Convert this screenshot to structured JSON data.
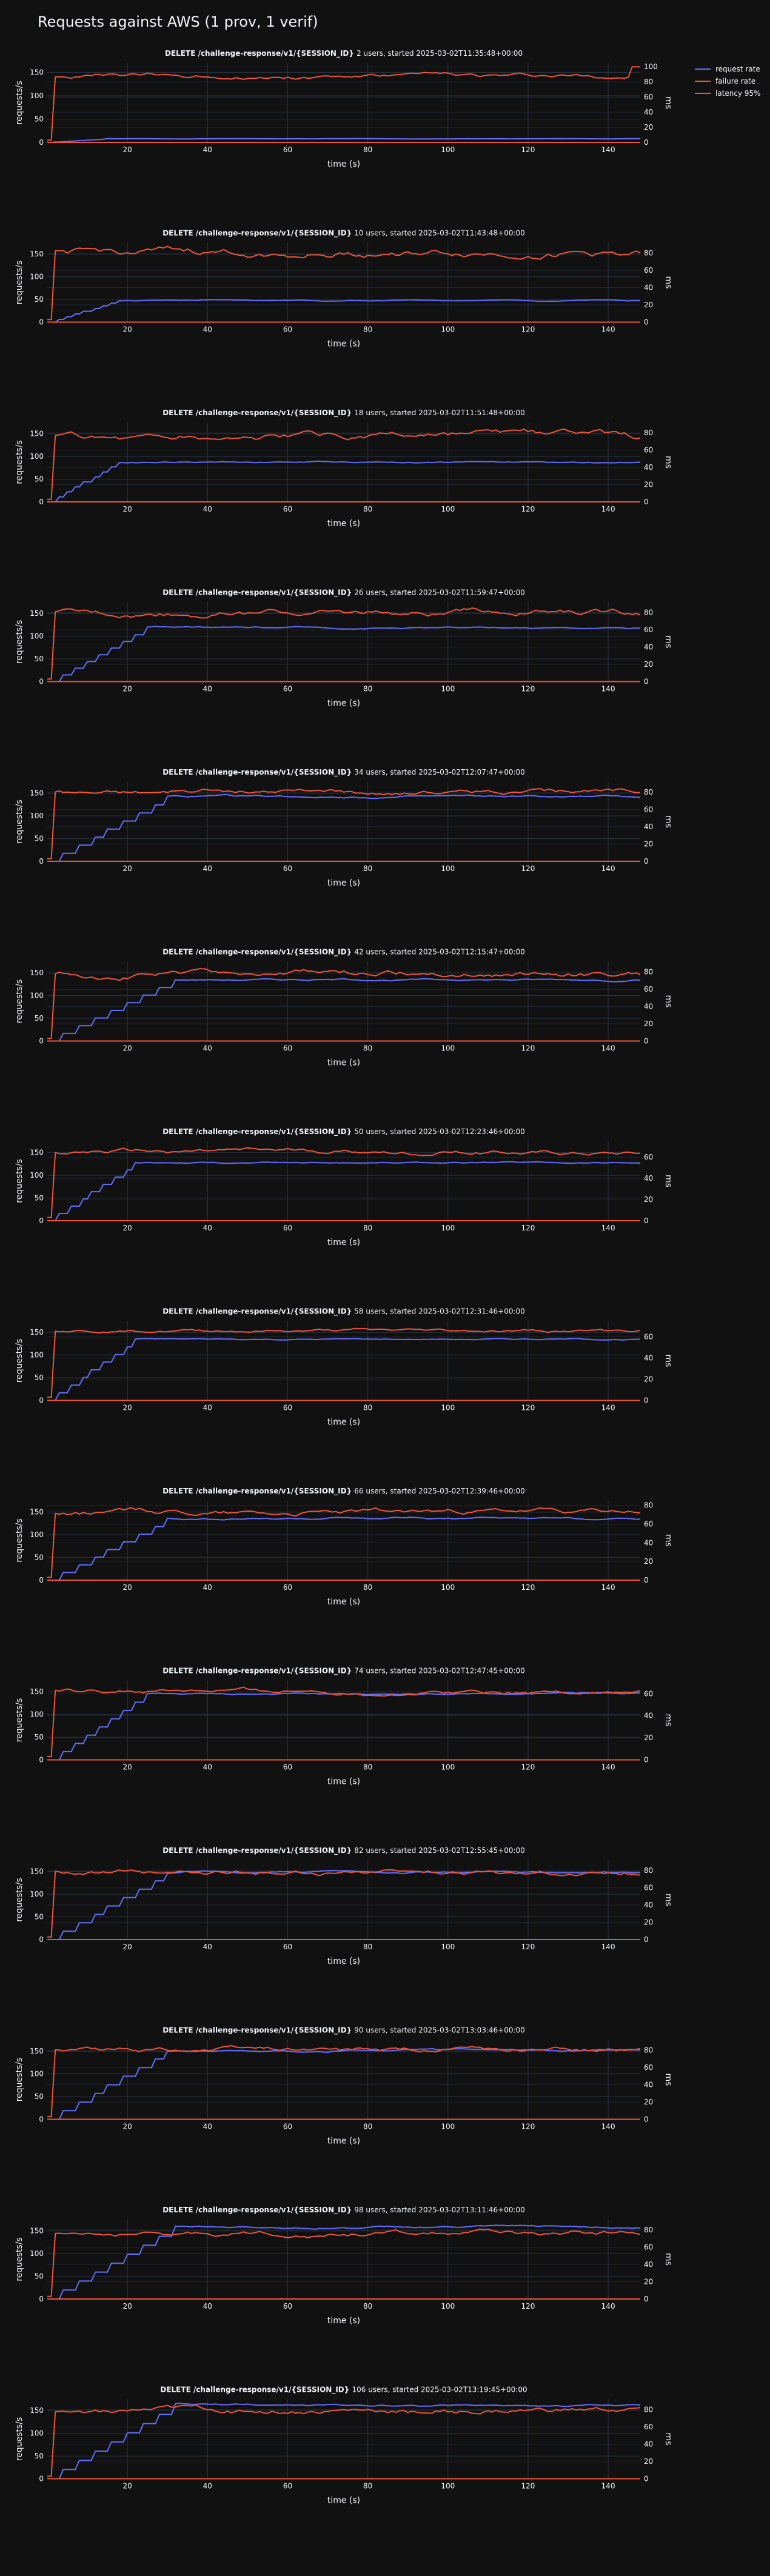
{
  "page": {
    "title": "Requests against AWS (1 prov, 1 verif)"
  },
  "colors": {
    "background": "#111111",
    "plot_background": "#111111",
    "grid": "#283442",
    "text": "#f2f5fa",
    "request_rate": "#636efa",
    "failure_rate": "#EF553B",
    "latency_95": "#EF553B"
  },
  "legend": {
    "items": [
      {
        "label": "request rate",
        "color": "#636efa"
      },
      {
        "label": "failure rate",
        "color": "#EF553B"
      },
      {
        "label": "latency 95%",
        "color": "#EF553B"
      }
    ]
  },
  "shared_axes": {
    "xlabel": "time (s)",
    "ylabel_left": "requests/s",
    "ylabel_right": "ms",
    "x_ticks": [
      20,
      40,
      60,
      80,
      100,
      120,
      140
    ],
    "x_range": [
      0,
      148
    ],
    "y_left_ticks": [
      0,
      50,
      100,
      150
    ]
  },
  "chart_data": [
    {
      "type": "line",
      "route": "DELETE /challenge-response/v1/{SESSION_ID}",
      "subtitle": "2 users, started 2025-03-02T11:35:48+00:00",
      "ylim": [
        0,
        170
      ],
      "y2lim": [
        0,
        105
      ],
      "y2_ticks": [
        0,
        20,
        40,
        60,
        80,
        100
      ],
      "series": [
        {
          "name": "request rate",
          "axis": "left",
          "plateau": 8,
          "ramp": 15,
          "jitter": 0.5
        },
        {
          "name": "failure rate",
          "axis": "left",
          "constant": 0
        },
        {
          "name": "latency 95%",
          "axis": "right",
          "start": 3,
          "level": 88,
          "jitter": 4,
          "end": 100
        }
      ]
    },
    {
      "type": "line",
      "route": "DELETE /challenge-response/v1/{SESSION_ID}",
      "subtitle": "10 users, started 2025-03-02T11:43:48+00:00",
      "ylim": [
        0,
        175
      ],
      "y2lim": [
        0,
        92
      ],
      "y2_ticks": [
        0,
        20,
        40,
        60,
        80
      ],
      "series": [
        {
          "name": "request rate",
          "axis": "left",
          "plateau": 48,
          "ramp": 18,
          "jitter": 1.5
        },
        {
          "name": "failure rate",
          "axis": "left",
          "constant": 0
        },
        {
          "name": "latency 95%",
          "axis": "right",
          "start": 3,
          "level": 80,
          "jitter": 6
        }
      ]
    },
    {
      "type": "line",
      "route": "DELETE /challenge-response/v1/{SESSION_ID}",
      "subtitle": "18 users, started 2025-03-02T11:51:48+00:00",
      "ylim": [
        0,
        175
      ],
      "y2lim": [
        0,
        92
      ],
      "y2_ticks": [
        0,
        20,
        40,
        60,
        80
      ],
      "series": [
        {
          "name": "request rate",
          "axis": "left",
          "plateau": 88,
          "ramp": 18,
          "jitter": 2
        },
        {
          "name": "failure rate",
          "axis": "left",
          "constant": 0
        },
        {
          "name": "latency 95%",
          "axis": "right",
          "start": 3,
          "level": 75,
          "jitter": 6
        }
      ]
    },
    {
      "type": "line",
      "route": "DELETE /challenge-response/v1/{SESSION_ID}",
      "subtitle": "26 users, started 2025-03-02T11:59:47+00:00",
      "ylim": [
        0,
        175
      ],
      "y2lim": [
        0,
        92
      ],
      "y2_ticks": [
        0,
        20,
        40,
        60,
        80
      ],
      "series": [
        {
          "name": "request rate",
          "axis": "left",
          "plateau": 118,
          "ramp": 25,
          "jitter": 2.5
        },
        {
          "name": "failure rate",
          "axis": "left",
          "constant": 0
        },
        {
          "name": "latency 95%",
          "axis": "right",
          "start": 3,
          "level": 80,
          "jitter": 5
        }
      ]
    },
    {
      "type": "line",
      "route": "DELETE /challenge-response/v1/{SESSION_ID}",
      "subtitle": "34 users, started 2025-03-02T12:07:47+00:00",
      "ylim": [
        0,
        175
      ],
      "y2lim": [
        0,
        92
      ],
      "y2_ticks": [
        0,
        20,
        40,
        60,
        80
      ],
      "series": [
        {
          "name": "request rate",
          "axis": "left",
          "plateau": 142,
          "ramp": 30,
          "jitter": 3
        },
        {
          "name": "failure rate",
          "axis": "left",
          "constant": 0
        },
        {
          "name": "latency 95%",
          "axis": "right",
          "start": 3,
          "level": 80,
          "jitter": 4
        }
      ]
    },
    {
      "type": "line",
      "route": "DELETE /challenge-response/v1/{SESSION_ID}",
      "subtitle": "42 users, started 2025-03-02T12:15:47+00:00",
      "ylim": [
        0,
        175
      ],
      "y2lim": [
        0,
        92
      ],
      "y2_ticks": [
        0,
        20,
        40,
        60,
        80
      ],
      "series": [
        {
          "name": "request rate",
          "axis": "left",
          "plateau": 135,
          "ramp": 32,
          "jitter": 2.5
        },
        {
          "name": "failure rate",
          "axis": "left",
          "constant": 0
        },
        {
          "name": "latency 95%",
          "axis": "right",
          "start": 3,
          "level": 78,
          "jitter": 5
        }
      ]
    },
    {
      "type": "line",
      "route": "DELETE /challenge-response/v1/{SESSION_ID}",
      "subtitle": "50 users, started 2025-03-02T12:23:46+00:00",
      "ylim": [
        0,
        175
      ],
      "y2lim": [
        0,
        75
      ],
      "y2_ticks": [
        0,
        20,
        40,
        60
      ],
      "series": [
        {
          "name": "request rate",
          "axis": "left",
          "plateau": 128,
          "ramp": 22,
          "jitter": 2
        },
        {
          "name": "failure rate",
          "axis": "left",
          "constant": 0
        },
        {
          "name": "latency 95%",
          "axis": "right",
          "start": 3,
          "level": 65,
          "jitter": 3
        }
      ]
    },
    {
      "type": "line",
      "route": "DELETE /challenge-response/v1/{SESSION_ID}",
      "subtitle": "58 users, started 2025-03-02T12:31:46+00:00",
      "ylim": [
        0,
        175
      ],
      "y2lim": [
        0,
        75
      ],
      "y2_ticks": [
        0,
        20,
        40,
        60
      ],
      "series": [
        {
          "name": "request rate",
          "axis": "left",
          "plateau": 135,
          "ramp": 22,
          "jitter": 2
        },
        {
          "name": "failure rate",
          "axis": "left",
          "constant": 0
        },
        {
          "name": "latency 95%",
          "axis": "right",
          "start": 3,
          "level": 66,
          "jitter": 2
        }
      ]
    },
    {
      "type": "line",
      "route": "DELETE /challenge-response/v1/{SESSION_ID}",
      "subtitle": "66 users, started 2025-03-02T12:39:46+00:00",
      "ylim": [
        0,
        175
      ],
      "y2lim": [
        0,
        85
      ],
      "y2_ticks": [
        0,
        20,
        40,
        60,
        80
      ],
      "series": [
        {
          "name": "request rate",
          "axis": "left",
          "plateau": 135,
          "ramp": 30,
          "jitter": 3
        },
        {
          "name": "failure rate",
          "axis": "left",
          "constant": 0
        },
        {
          "name": "latency 95%",
          "axis": "right",
          "start": 3,
          "level": 73,
          "jitter": 4
        }
      ]
    },
    {
      "type": "line",
      "route": "DELETE /challenge-response/v1/{SESSION_ID}",
      "subtitle": "74 users, started 2025-03-02T12:47:45+00:00",
      "ylim": [
        0,
        175
      ],
      "y2lim": [
        0,
        72
      ],
      "y2_ticks": [
        0,
        20,
        40,
        60
      ],
      "series": [
        {
          "name": "request rate",
          "axis": "left",
          "plateau": 145,
          "ramp": 25,
          "jitter": 2.5
        },
        {
          "name": "failure rate",
          "axis": "left",
          "constant": 0
        },
        {
          "name": "latency 95%",
          "axis": "right",
          "start": 3,
          "level": 62,
          "jitter": 3
        }
      ]
    },
    {
      "type": "line",
      "route": "DELETE /challenge-response/v1/{SESSION_ID}",
      "subtitle": "82 users, started 2025-03-02T12:55:45+00:00",
      "ylim": [
        0,
        175
      ],
      "y2lim": [
        0,
        92
      ],
      "y2_ticks": [
        0,
        20,
        40,
        60,
        80
      ],
      "series": [
        {
          "name": "request rate",
          "axis": "left",
          "plateau": 148,
          "ramp": 30,
          "jitter": 3
        },
        {
          "name": "failure rate",
          "axis": "left",
          "constant": 0
        },
        {
          "name": "latency 95%",
          "axis": "right",
          "start": 3,
          "level": 78,
          "jitter": 4
        }
      ]
    },
    {
      "type": "line",
      "route": "DELETE /challenge-response/v1/{SESSION_ID}",
      "subtitle": "90 users, started 2025-03-02T13:03:46+00:00",
      "ylim": [
        0,
        175
      ],
      "y2lim": [
        0,
        92
      ],
      "y2_ticks": [
        0,
        20,
        40,
        60,
        80
      ],
      "series": [
        {
          "name": "request rate",
          "axis": "left",
          "plateau": 152,
          "ramp": 30,
          "jitter": 3
        },
        {
          "name": "failure rate",
          "axis": "left",
          "constant": 0
        },
        {
          "name": "latency 95%",
          "axis": "right",
          "start": 3,
          "level": 80,
          "jitter": 4
        }
      ]
    },
    {
      "type": "line",
      "route": "DELETE /challenge-response/v1/{SESSION_ID}",
      "subtitle": "98 users, started 2025-03-02T13:11:46+00:00",
      "ylim": [
        0,
        175
      ],
      "y2lim": [
        0,
        92
      ],
      "y2_ticks": [
        0,
        20,
        40,
        60,
        80
      ],
      "series": [
        {
          "name": "request rate",
          "axis": "left",
          "plateau": 158,
          "ramp": 32,
          "jitter": 3
        },
        {
          "name": "failure rate",
          "axis": "left",
          "constant": 0
        },
        {
          "name": "latency 95%",
          "axis": "right",
          "start": 3,
          "level": 76,
          "jitter": 4
        }
      ]
    },
    {
      "type": "line",
      "route": "DELETE /challenge-response/v1/{SESSION_ID}",
      "subtitle": "106 users, started 2025-03-02T13:19:45+00:00",
      "ylim": [
        0,
        175
      ],
      "y2lim": [
        0,
        92
      ],
      "y2_ticks": [
        0,
        20,
        40,
        60,
        80
      ],
      "series": [
        {
          "name": "request rate",
          "axis": "left",
          "plateau": 162,
          "ramp": 32,
          "jitter": 3
        },
        {
          "name": "failure rate",
          "axis": "left",
          "constant": 0
        },
        {
          "name": "latency 95%",
          "axis": "right",
          "start": 3,
          "level": 78,
          "jitter": 5
        }
      ]
    }
  ]
}
